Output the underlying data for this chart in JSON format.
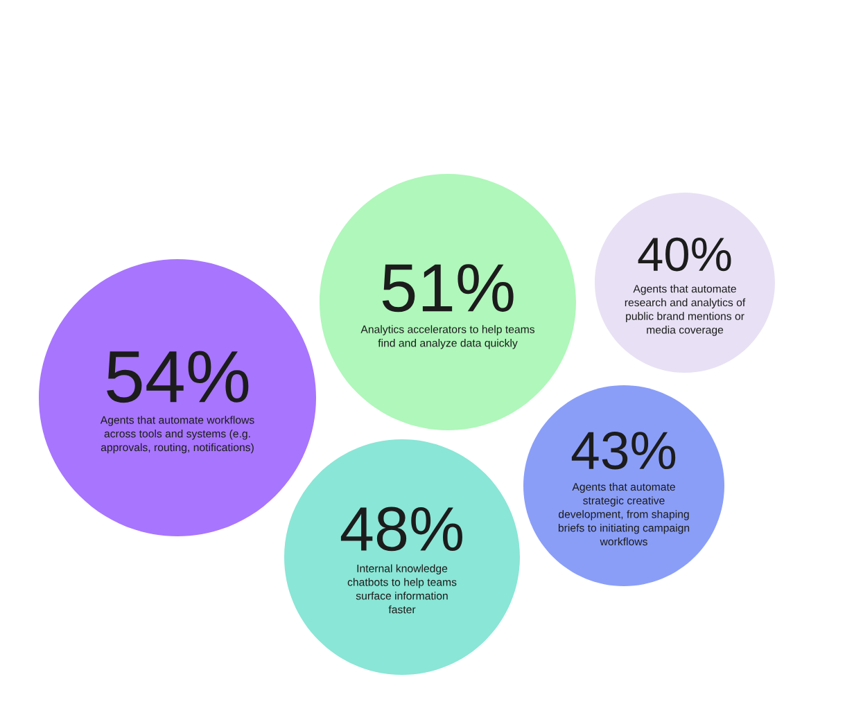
{
  "chart_data": {
    "type": "other",
    "categories": [
      "Agents that automate workflows across tools and systems (e.g. approvals, routing, notifications)",
      "Analytics accelerators to help teams find and analyze data quickly",
      "Internal knowledge chatbots to help teams surface information faster",
      "Agents that automate strategic creative development, from shaping briefs to initiating campaign workflows",
      "Agents that automate research and analytics of public brand mentions or media coverage"
    ],
    "values": [
      54,
      51,
      48,
      43,
      40
    ],
    "value_labels": [
      "54%",
      "51%",
      "48%",
      "43%",
      "40%"
    ],
    "colors": [
      "#a875fe",
      "#aff7ba",
      "#8ae6d6",
      "#8a9ef8",
      "#e8e1f5"
    ]
  }
}
